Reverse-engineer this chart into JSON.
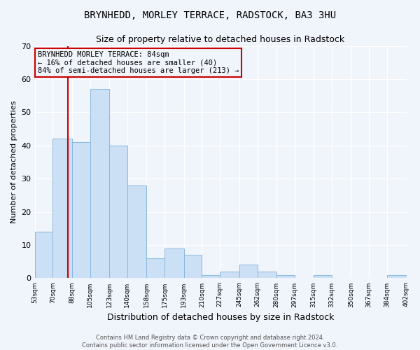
{
  "title": "BRYNHEDD, MORLEY TERRACE, RADSTOCK, BA3 3HU",
  "subtitle": "Size of property relative to detached houses in Radstock",
  "xlabel": "Distribution of detached houses by size in Radstock",
  "ylabel": "Number of detached properties",
  "bar_edges": [
    53,
    70,
    88,
    105,
    123,
    140,
    158,
    175,
    193,
    210,
    227,
    245,
    262,
    280,
    297,
    315,
    332,
    350,
    367,
    384,
    402
  ],
  "bar_heights": [
    14,
    42,
    41,
    57,
    40,
    28,
    6,
    9,
    7,
    1,
    2,
    4,
    2,
    1,
    0,
    1,
    0,
    0,
    0,
    1
  ],
  "bar_color": "#cce0f5",
  "bar_edge_color": "#89b8e0",
  "vline_x": 84,
  "vline_color": "#cc0000",
  "ylim": [
    0,
    70
  ],
  "yticks": [
    0,
    10,
    20,
    30,
    40,
    50,
    60,
    70
  ],
  "annotation_title": "BRYNHEDD MORLEY TERRACE: 84sqm",
  "annotation_line1": "← 16% of detached houses are smaller (40)",
  "annotation_line2": "84% of semi-detached houses are larger (213) →",
  "annotation_box_color": "#cc0000",
  "footer1": "Contains HM Land Registry data © Crown copyright and database right 2024.",
  "footer2": "Contains public sector information licensed under the Open Government Licence v3.0.",
  "tick_labels": [
    "53sqm",
    "70sqm",
    "88sqm",
    "105sqm",
    "123sqm",
    "140sqm",
    "158sqm",
    "175sqm",
    "193sqm",
    "210sqm",
    "227sqm",
    "245sqm",
    "262sqm",
    "280sqm",
    "297sqm",
    "315sqm",
    "332sqm",
    "350sqm",
    "367sqm",
    "384sqm",
    "402sqm"
  ],
  "background_color": "#f0f4fb",
  "grid_color": "#ffffff",
  "title_fontsize": 10,
  "subtitle_fontsize": 9,
  "xlabel_fontsize": 9,
  "ylabel_fontsize": 8,
  "tick_fontsize": 6.5,
  "annot_fontsize": 7.5,
  "footer_fontsize": 6
}
